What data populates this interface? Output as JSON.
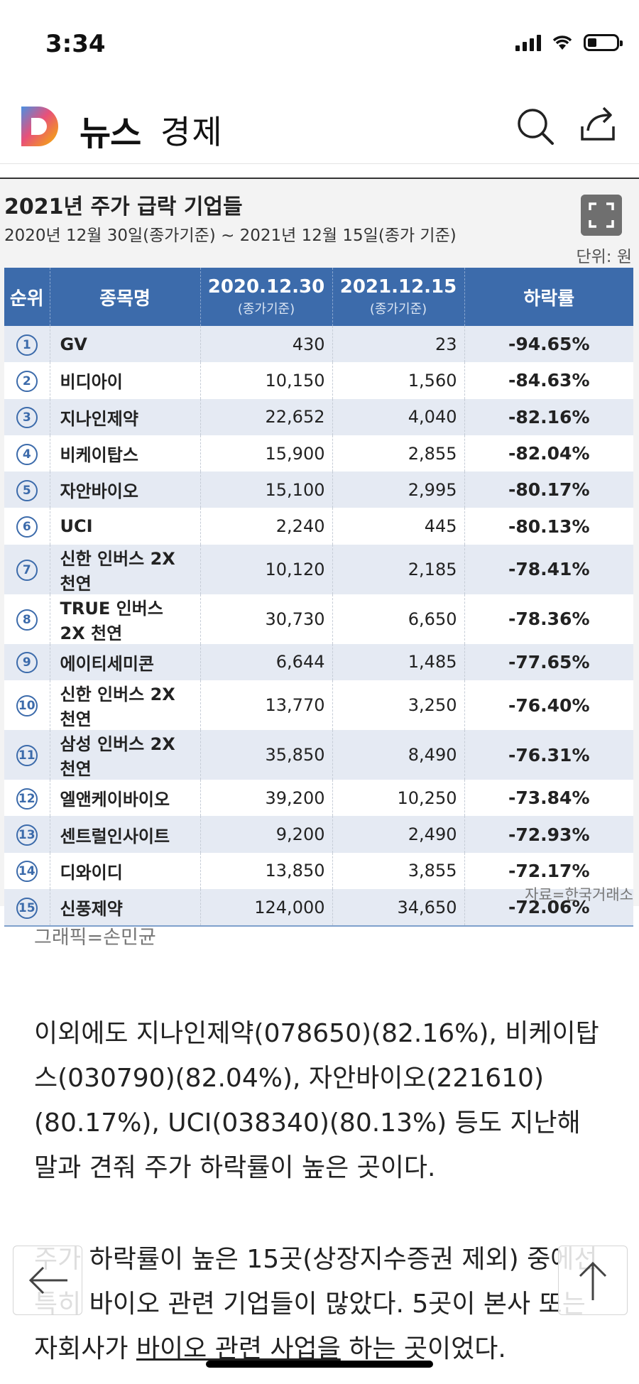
{
  "status_bar": {
    "time": "3:34"
  },
  "header": {
    "title": "뉴스",
    "section": "경제"
  },
  "infographic": {
    "title": "2021년 주가 급락 기업들",
    "subtitle": "2020년 12월 30일(종가기준) ~ 2021년 12월 15일(종가 기준)",
    "unit": "단위: 원",
    "columns": [
      {
        "label": "순위",
        "sub": ""
      },
      {
        "label": "종목명",
        "sub": ""
      },
      {
        "label": "2020.12.30",
        "sub": "(종가기준)"
      },
      {
        "label": "2021.12.15",
        "sub": "(종가기준)"
      },
      {
        "label": "하락률",
        "sub": ""
      }
    ],
    "rows": [
      {
        "rank": "1",
        "name": "GV",
        "price_2020": "430",
        "price_2021": "23",
        "rate": "-94.65%"
      },
      {
        "rank": "2",
        "name": "비디아이",
        "price_2020": "10,150",
        "price_2021": "1,560",
        "rate": "-84.63%"
      },
      {
        "rank": "3",
        "name": "지나인제약",
        "price_2020": "22,652",
        "price_2021": "4,040",
        "rate": "-82.16%"
      },
      {
        "rank": "4",
        "name": "비케이탑스",
        "price_2020": "15,900",
        "price_2021": "2,855",
        "rate": "-82.04%"
      },
      {
        "rank": "5",
        "name": "자안바이오",
        "price_2020": "15,100",
        "price_2021": "2,995",
        "rate": "-80.17%"
      },
      {
        "rank": "6",
        "name": "UCI",
        "price_2020": "2,240",
        "price_2021": "445",
        "rate": "-80.13%"
      },
      {
        "rank": "7",
        "name": "신한 인버스 2X 천연",
        "price_2020": "10,120",
        "price_2021": "2,185",
        "rate": "-78.41%"
      },
      {
        "rank": "8",
        "name": "TRUE 인버스 2X 천연",
        "price_2020": "30,730",
        "price_2021": "6,650",
        "rate": "-78.36%"
      },
      {
        "rank": "9",
        "name": "에이티세미콘",
        "price_2020": "6,644",
        "price_2021": "1,485",
        "rate": "-77.65%"
      },
      {
        "rank": "10",
        "name": "신한 인버스 2X 천연",
        "price_2020": "13,770",
        "price_2021": "3,250",
        "rate": "-76.40%"
      },
      {
        "rank": "11",
        "name": "삼성 인버스 2X 천연",
        "price_2020": "35,850",
        "price_2021": "8,490",
        "rate": "-76.31%"
      },
      {
        "rank": "12",
        "name": "엘앤케이바이오",
        "price_2020": "39,200",
        "price_2021": "10,250",
        "rate": "-73.84%"
      },
      {
        "rank": "13",
        "name": "센트럴인사이트",
        "price_2020": "9,200",
        "price_2021": "2,490",
        "rate": "-72.93%"
      },
      {
        "rank": "14",
        "name": "디와이디",
        "price_2020": "13,850",
        "price_2021": "3,855",
        "rate": "-72.17%"
      },
      {
        "rank": "15",
        "name": "신풍제약",
        "price_2020": "124,000",
        "price_2021": "34,650",
        "rate": "-72.06%"
      }
    ],
    "source": "자료=한국거래소"
  },
  "caption": "그래픽=손민균",
  "article": {
    "p1": "이외에도 지나인제약(078650)(82.16%), 비케이탑스(030790)(82.04%),  자안바이오(221610)(80.17%), UCI(038340)(80.13%) 등도 지난해 말과 견줘 주가 하락률이 높은 곳이다.",
    "p2_before": "주가 하락률이 높은 15곳(상장지수증권 제외) 중에선 특히 바이오 관련 기업들이 많았다. 5곳이 본사 또는 자회사가 ",
    "p2_underlined": "바이오 관련 사업을",
    "p2_after": " 하는 곳이었다."
  },
  "icons": {
    "logo": "daum-d-logo",
    "search": "search-icon",
    "share": "share-icon",
    "expand": "fullscreen-icon",
    "back": "back-arrow-icon",
    "top": "scroll-top-icon"
  },
  "colors": {
    "table_header": "#3c6bab",
    "row_stripe": "#e5eaf3",
    "rate_text": "#2a4f8a"
  }
}
